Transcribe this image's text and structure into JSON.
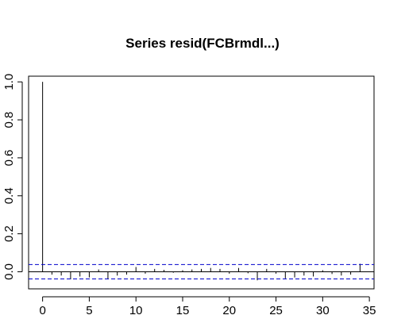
{
  "chart_data": {
    "type": "bar",
    "title": "Series resid(FCBrmdl...)",
    "xlabel": "",
    "ylabel": "",
    "xlim": [
      -1.5,
      35.5
    ],
    "ylim": [
      -0.09,
      1.03
    ],
    "x_ticks": [
      "0",
      "5",
      "10",
      "15",
      "20",
      "25",
      "30",
      "35"
    ],
    "y_ticks": [
      "0.0",
      "0.2",
      "0.4",
      "0.6",
      "0.8",
      "1.0"
    ],
    "x_tick_values": [
      0,
      5,
      10,
      15,
      20,
      25,
      30,
      35
    ],
    "y_tick_values": [
      0.0,
      0.2,
      0.4,
      0.6,
      0.8,
      1.0
    ],
    "confidence_bound": 0.038,
    "lags": [
      0,
      1,
      2,
      3,
      4,
      5,
      6,
      7,
      8,
      9,
      10,
      11,
      12,
      13,
      14,
      15,
      16,
      17,
      18,
      19,
      20,
      21,
      22,
      23,
      24,
      25,
      26,
      27,
      28,
      29,
      30,
      31,
      32,
      33,
      34
    ],
    "values": [
      1.0,
      -0.015,
      -0.02,
      -0.04,
      -0.025,
      -0.03,
      0.012,
      -0.04,
      -0.02,
      -0.015,
      0.025,
      -0.01,
      0.015,
      0.01,
      -0.005,
      0.008,
      0.012,
      0.015,
      0.02,
      0.015,
      -0.01,
      0.02,
      -0.008,
      -0.045,
      0.015,
      -0.01,
      -0.035,
      -0.03,
      -0.02,
      -0.025,
      0.008,
      -0.012,
      -0.02,
      -0.015,
      0.042
    ],
    "colors": {
      "bars": "#000000",
      "bounds": "#0000cc",
      "zero_line": "#000000",
      "frame": "#000000"
    },
    "grid": false,
    "legend": "none"
  }
}
